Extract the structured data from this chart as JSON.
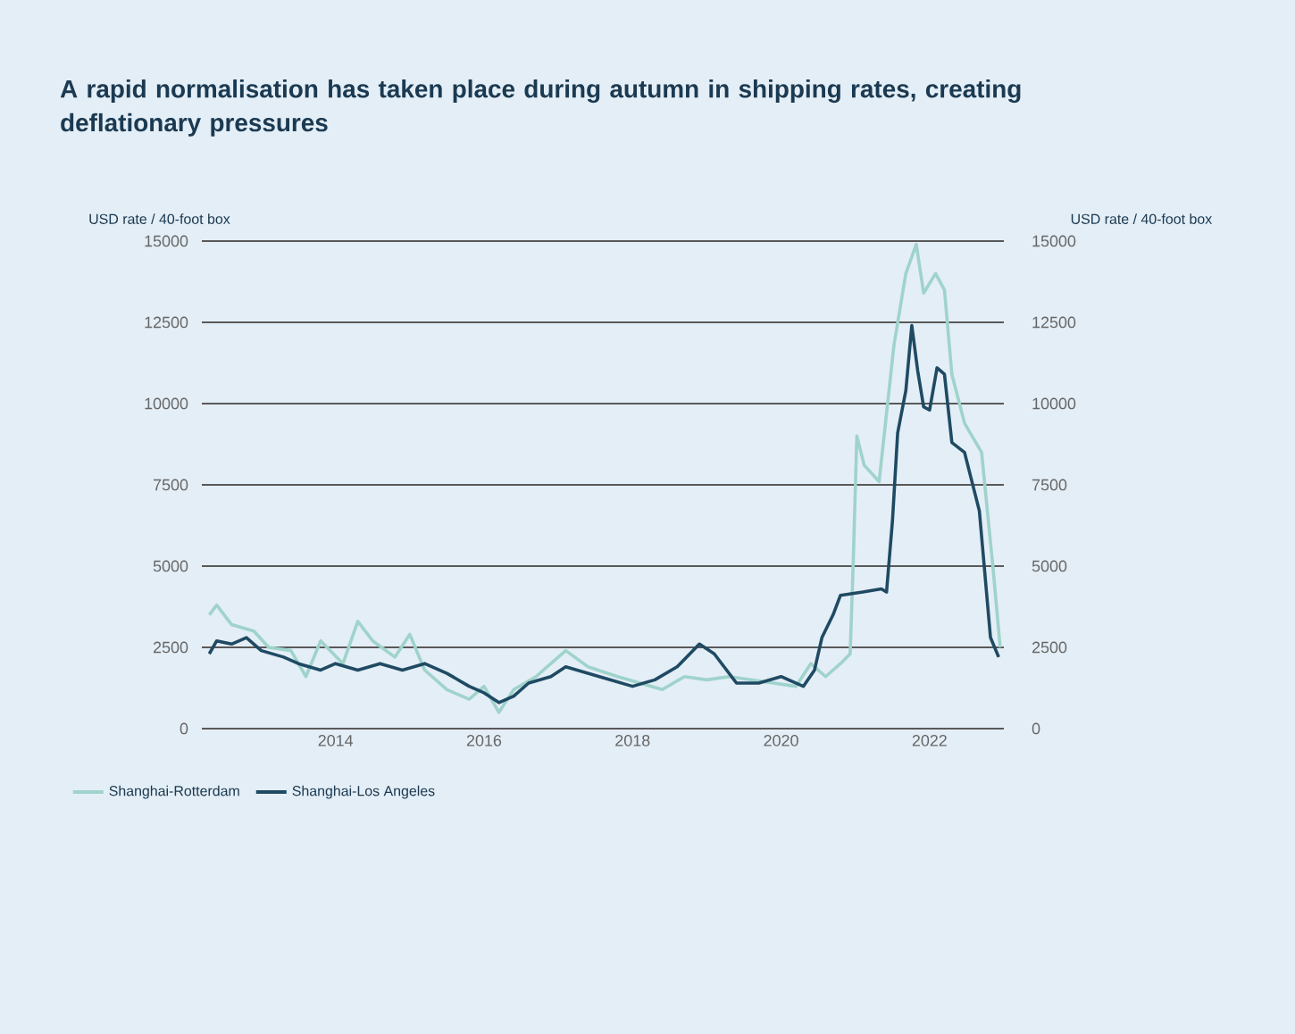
{
  "chart_data": {
    "type": "line",
    "title": "A rapid normalisation has taken place during autumn in shipping rates, creating deflationary pressures",
    "ylabel": "USD rate / 40-foot box",
    "y2label": "USD rate / 40-foot box",
    "xlim": [
      2012.2,
      2023.0
    ],
    "xticks": [
      2014,
      2016,
      2018,
      2020,
      2022
    ],
    "ylim": [
      0,
      15000
    ],
    "yticks": [
      0,
      2500,
      5000,
      7500,
      10000,
      12500,
      15000
    ],
    "y2lim": [
      0,
      15000
    ],
    "y2ticks": [
      0,
      2500,
      5000,
      7500,
      10000,
      12500,
      15000
    ],
    "grid": "y",
    "legend": "bottom",
    "line_style": "solid",
    "series": [
      {
        "name": "Shanghai-Rotterdam",
        "color": "#9fd3cc",
        "x": [
          2012.3,
          2012.4,
          2012.6,
          2012.9,
          2013.1,
          2013.4,
          2013.6,
          2013.8,
          2014.1,
          2014.3,
          2014.5,
          2014.8,
          2015.0,
          2015.2,
          2015.5,
          2015.8,
          2016.0,
          2016.2,
          2016.4,
          2016.7,
          2016.9,
          2017.1,
          2017.4,
          2017.8,
          2018.1,
          2018.4,
          2018.7,
          2019.0,
          2019.3,
          2019.6,
          2019.9,
          2020.2,
          2020.4,
          2020.6,
          2020.8,
          2020.93,
          2020.97,
          2021.02,
          2021.12,
          2021.32,
          2021.52,
          2021.68,
          2021.82,
          2021.92,
          2022.08,
          2022.2,
          2022.3,
          2022.47,
          2022.7,
          2022.86,
          2022.95
        ],
        "values": [
          3500,
          3800,
          3200,
          3000,
          2500,
          2400,
          1600,
          2700,
          2000,
          3300,
          2700,
          2200,
          2900,
          1800,
          1200,
          900,
          1300,
          500,
          1200,
          1600,
          2000,
          2400,
          1900,
          1600,
          1400,
          1200,
          1600,
          1500,
          1600,
          1500,
          1400,
          1300,
          2000,
          1600,
          2000,
          2300,
          5000,
          9000,
          8100,
          7600,
          11800,
          14000,
          14900,
          13400,
          14000,
          13500,
          10900,
          9400,
          8500,
          4800,
          2500
        ]
      },
      {
        "name": "Shanghai-Los Angeles",
        "color": "#1f4a63",
        "x": [
          2012.3,
          2012.4,
          2012.6,
          2012.8,
          2013.0,
          2013.3,
          2013.5,
          2013.8,
          2014.0,
          2014.3,
          2014.6,
          2014.9,
          2015.2,
          2015.5,
          2015.8,
          2016.0,
          2016.2,
          2016.4,
          2016.6,
          2016.9,
          2017.1,
          2017.4,
          2017.7,
          2018.0,
          2018.3,
          2018.6,
          2018.9,
          2019.1,
          2019.4,
          2019.7,
          2020.0,
          2020.3,
          2020.45,
          2020.55,
          2020.7,
          2020.8,
          2021.1,
          2021.35,
          2021.42,
          2021.5,
          2021.57,
          2021.68,
          2021.76,
          2021.84,
          2021.92,
          2022.0,
          2022.1,
          2022.2,
          2022.3,
          2022.47,
          2022.67,
          2022.82,
          2022.93
        ],
        "values": [
          2300,
          2700,
          2600,
          2800,
          2400,
          2200,
          2000,
          1800,
          2000,
          1800,
          2000,
          1800,
          2000,
          1700,
          1300,
          1100,
          800,
          1000,
          1400,
          1600,
          1900,
          1700,
          1500,
          1300,
          1500,
          1900,
          2600,
          2300,
          1400,
          1400,
          1600,
          1300,
          1800,
          2800,
          3500,
          4100,
          4200,
          4300,
          4200,
          6400,
          9100,
          10400,
          12400,
          11000,
          9900,
          9800,
          11100,
          10900,
          8800,
          8500,
          6700,
          2800,
          2200
        ]
      }
    ]
  }
}
